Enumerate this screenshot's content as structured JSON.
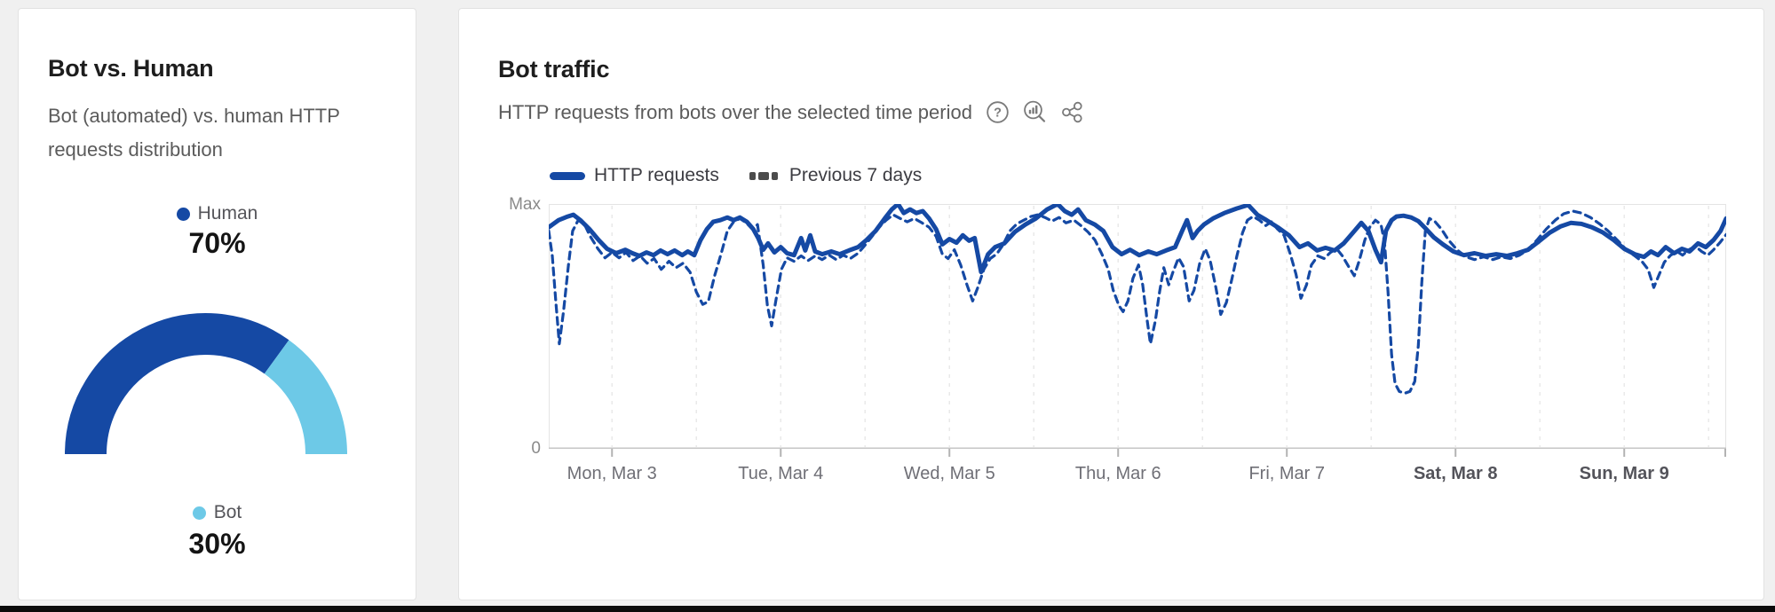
{
  "page": {
    "background": "#f0f0f0",
    "bottom_bar_color": "#0b0b0b"
  },
  "colors": {
    "accent_blue": "#1549a4",
    "light_blue": "#6dc9e7",
    "dash_marker_gray": "#4c4c4c",
    "gridline": "#e9e9e9",
    "plot_border": "#e4e4e4",
    "axis_line": "#c6c6c6",
    "tick": "#b3b3b3"
  },
  "bot_vs_human_card": {
    "title": "Bot vs. Human",
    "subtitle": "Bot (automated) vs. human HTTP requests distribution",
    "legend_human": {
      "label": "Human",
      "value": "70%",
      "color": "#1549a4"
    },
    "legend_bot": {
      "label": "Bot",
      "value": "30%",
      "color": "#6dc9e7"
    }
  },
  "bot_traffic_card": {
    "title": "Bot traffic",
    "description": "HTTP requests from bots over the selected time period",
    "icons": [
      "help-icon",
      "zoom-analytics-icon",
      "share-icon"
    ],
    "legend": [
      {
        "label": "HTTP requests",
        "style": "solid"
      },
      {
        "label": "Previous 7 days",
        "style": "dashed"
      }
    ]
  },
  "chart_data": [
    {
      "type": "pie",
      "shape": "half-donut",
      "title": "Bot vs. Human",
      "slices": [
        {
          "label": "Human",
          "value": 70,
          "color": "#1549a4"
        },
        {
          "label": "Bot",
          "value": 30,
          "color": "#6dc9e7"
        }
      ]
    },
    {
      "type": "line",
      "title": "Bot traffic",
      "x_unit": "hours",
      "x_range": [
        0,
        167.5
      ],
      "grid_start_hour": 9,
      "grid_step_hours": 12,
      "gridlines": "vertical-dashed",
      "legend_position": "top-left",
      "y_axis_labels": [
        "Max",
        "0"
      ],
      "ylim_percent_of_max": [
        0,
        100
      ],
      "x_ticks": [
        {
          "hour": 9,
          "label": "Mon, Mar 3",
          "bold": false
        },
        {
          "hour": 33,
          "label": "Tue, Mar 4",
          "bold": false
        },
        {
          "hour": 57,
          "label": "Wed, Mar 5",
          "bold": false
        },
        {
          "hour": 81,
          "label": "Thu, Mar 6",
          "bold": false
        },
        {
          "hour": 105,
          "label": "Fri, Mar 7",
          "bold": false
        },
        {
          "hour": 129,
          "label": "Sat, Mar 8",
          "bold": true
        },
        {
          "hour": 153,
          "label": "Sun, Mar 9",
          "bold": true
        }
      ],
      "series": [
        {
          "name": "HTTP requests",
          "style": "solid",
          "color": "#1549a4",
          "x": [
            0,
            1.4,
            2.7,
            3.5,
            4.5,
            5.8,
            7.1,
            8.3,
            9.6,
            10.9,
            11.9,
            12.9,
            13.9,
            14.9,
            15.9,
            16.9,
            17.9,
            19,
            19.8,
            20.7,
            21.6,
            22.5,
            23.4,
            24.4,
            25.4,
            26.3,
            27.2,
            28.2,
            29.1,
            29.8,
            30.5,
            31.2,
            32.1,
            33,
            33.9,
            34.9,
            35.9,
            36.5,
            37.2,
            37.9,
            38.9,
            40.2,
            41.4,
            42.7,
            44,
            45.2,
            46.5,
            47.8,
            48.8,
            49.7,
            50.5,
            51.4,
            52.3,
            53.2,
            54.1,
            55.1,
            56,
            57,
            58,
            58.9,
            59.8,
            60.6,
            61.5,
            62.5,
            63.5,
            64.8,
            66.3,
            67.8,
            69.3,
            70.9,
            72.4,
            73.4,
            74.4,
            75.3,
            76.4,
            77.7,
            78.9,
            80.2,
            81.5,
            82.7,
            84,
            85.3,
            86.5,
            87.8,
            89.1,
            90.1,
            90.8,
            91.6,
            92.3,
            93.2,
            94.5,
            96.1,
            97.9,
            99.5,
            100.8,
            102.1,
            103.7,
            105.3,
            106.8,
            108,
            109.3,
            110.5,
            111.8,
            113.1,
            114.3,
            115.6,
            116.6,
            117.6,
            118.4,
            119.1,
            119.9,
            120.6,
            121.6,
            122.7,
            123.7,
            124.7,
            125.9,
            127.2,
            128.7,
            130.2,
            131.7,
            133.3,
            134.8,
            136.3,
            137.8,
            139.3,
            140.8,
            142.4,
            143.9,
            145.4,
            146.9,
            148.4,
            150,
            151.5,
            153,
            154.5,
            155.8,
            156.8,
            157.8,
            158.9,
            160.1,
            161.2,
            162.3,
            163.5,
            164.6,
            165.7,
            166.7,
            167.5
          ],
          "values": [
            90.5,
            93.4,
            94.9,
            95.6,
            93.4,
            89.7,
            85.3,
            81.7,
            79.9,
            81.3,
            79.9,
            78.8,
            80.2,
            79.1,
            81,
            79.5,
            81,
            79.1,
            80.6,
            79.1,
            85.3,
            89.7,
            92.7,
            93.4,
            94.5,
            93.4,
            94.5,
            92.7,
            89.7,
            86.1,
            81.3,
            83.9,
            80.2,
            82.4,
            79.9,
            79.1,
            86.1,
            81,
            87.2,
            80.6,
            79.5,
            80.6,
            79.5,
            81,
            82.4,
            85.3,
            89,
            94.1,
            97.8,
            100,
            96.3,
            97.8,
            96.3,
            97.1,
            94.1,
            89.7,
            83.5,
            85.7,
            84.2,
            87.2,
            85,
            86.1,
            72.2,
            79.5,
            82.4,
            83.9,
            88.6,
            91.6,
            94.1,
            97.8,
            100,
            97.1,
            95.6,
            97.8,
            93.4,
            91.6,
            89,
            82.4,
            79.5,
            81.3,
            79.1,
            80.6,
            79.5,
            81,
            82.4,
            89,
            93.4,
            86.1,
            89,
            91.6,
            94.1,
            96.3,
            98.2,
            99.6,
            95.6,
            93.4,
            90.5,
            87.2,
            82.4,
            83.9,
            81,
            82.1,
            81,
            83.9,
            87.9,
            92.3,
            89,
            81.3,
            76.2,
            89,
            93.4,
            94.9,
            95.2,
            94.5,
            93,
            90.1,
            86.4,
            83.5,
            80.6,
            79.1,
            79.9,
            78.8,
            79.5,
            78.8,
            79.9,
            81.3,
            84.6,
            88.3,
            90.8,
            92.3,
            91.9,
            90.5,
            88.3,
            85.3,
            81.7,
            79.5,
            78.4,
            80.6,
            79.1,
            82.4,
            79.9,
            81.7,
            80.6,
            83.9,
            82.4,
            85.3,
            89,
            94.1
          ]
        },
        {
          "name": "Previous 7 days",
          "style": "dashed",
          "color": "#1549a4",
          "x": [
            0,
            0.5,
            1,
            1.5,
            2.1,
            2.8,
            3.4,
            4.2,
            5.1,
            5.9,
            7,
            8,
            9,
            10,
            11,
            12,
            13,
            14,
            15,
            16,
            17.1,
            18.1,
            19.1,
            20.1,
            21,
            21.9,
            22.7,
            23.6,
            24.5,
            25.4,
            26.3,
            27.2,
            28.1,
            29,
            29.7,
            30.5,
            31.1,
            31.7,
            32.3,
            33.1,
            33.9,
            34.9,
            35.9,
            36.9,
            37.9,
            38.9,
            39.9,
            40.9,
            41.9,
            42.9,
            44,
            45,
            46,
            47,
            48,
            49,
            50,
            51,
            52,
            53.1,
            54.1,
            55.1,
            56,
            56.8,
            57.7,
            58.6,
            59.5,
            60.3,
            61,
            61.9,
            62.8,
            63.7,
            64.6,
            65.6,
            66.6,
            67.6,
            68.6,
            69.6,
            70.6,
            71.6,
            72.6,
            73.6,
            74.7,
            75.7,
            76.7,
            77.7,
            78.7,
            79.6,
            80.3,
            81.1,
            81.7,
            82.4,
            83.1,
            83.9,
            84.5,
            85.1,
            85.6,
            86.3,
            86.9,
            87.5,
            88.2,
            88.8,
            89.6,
            90.3,
            91.1,
            91.8,
            92.6,
            93.4,
            94.1,
            94.9,
            95.6,
            96.4,
            97.2,
            97.9,
            98.7,
            99.4,
            100.2,
            101.1,
            102,
            102.8,
            103.7,
            104.6,
            105.5,
            106.3,
            107,
            107.8,
            108.5,
            109.4,
            110.3,
            111.2,
            112.1,
            112.9,
            113.8,
            114.6,
            115.3,
            116.1,
            116.8,
            117.6,
            118.4,
            118.9,
            119.4,
            119.9,
            120.4,
            121,
            121.8,
            122.5,
            123.2,
            123.7,
            124.2,
            124.7,
            125.3,
            126.1,
            127,
            128,
            129.2,
            130.5,
            131.7,
            133,
            134.3,
            135.5,
            136.8,
            138.1,
            139.3,
            140.6,
            141.9,
            143.2,
            144.4,
            145.7,
            146.9,
            148.2,
            149.5,
            150.7,
            152,
            153.3,
            154.5,
            155.5,
            156.4,
            157.2,
            157.9,
            158.7,
            159.6,
            160.5,
            161.3,
            162.2,
            163.1,
            164,
            164.9,
            165.7,
            166.6,
            167.5
          ],
          "values": [
            89,
            78.8,
            60.4,
            42.9,
            56,
            75.1,
            89,
            93.4,
            91.6,
            86.8,
            81.7,
            78,
            80.2,
            78,
            80.2,
            76.9,
            78.8,
            75.8,
            77.7,
            73.3,
            76.6,
            74,
            75.8,
            72.2,
            64.1,
            59,
            60.1,
            70.7,
            79.5,
            89,
            92.7,
            94.1,
            92.3,
            89.7,
            91.6,
            75.1,
            58.6,
            50.2,
            60.4,
            73.3,
            78,
            76.6,
            78.8,
            76.9,
            78.8,
            77.3,
            79.1,
            77.3,
            79.1,
            77.7,
            79.9,
            83.2,
            86.8,
            90.5,
            93.4,
            95.6,
            94.1,
            92.7,
            94.1,
            92.3,
            90.5,
            86.8,
            79.5,
            77.7,
            81.3,
            75.1,
            67,
            60.4,
            65.6,
            73.3,
            77.7,
            79.5,
            83.2,
            89,
            91.9,
            93.4,
            94.9,
            95.6,
            94.5,
            93,
            94.5,
            92.3,
            93.4,
            91.2,
            88.6,
            85.3,
            79.5,
            73.3,
            64.8,
            58.6,
            56,
            60.4,
            69.6,
            75.1,
            67,
            53.1,
            42.9,
            52.4,
            64.1,
            74,
            67,
            72.2,
            78,
            74.4,
            60.4,
            64.8,
            75.8,
            81.7,
            76.9,
            65.9,
            54.9,
            59.7,
            69.6,
            78.8,
            88.3,
            93.4,
            94.9,
            93.4,
            91.2,
            92.7,
            89.7,
            87.2,
            79.5,
            71.4,
            61.5,
            67,
            75.1,
            78.8,
            77.7,
            80.2,
            81.7,
            78.8,
            74.4,
            70.7,
            76.9,
            85.3,
            90.5,
            93.4,
            91.6,
            84.2,
            64.1,
            38.5,
            26.7,
            23.4,
            22.7,
            23.4,
            27.5,
            42.1,
            67.8,
            89,
            94.1,
            92.7,
            89.7,
            85.3,
            81.3,
            78.4,
            77.3,
            78.4,
            77.3,
            78.4,
            77.7,
            79.1,
            81.3,
            85.3,
            89.7,
            93.4,
            96,
            97.1,
            96.3,
            94.5,
            91.9,
            89,
            85.3,
            81.3,
            78.8,
            76.6,
            73.3,
            65.9,
            70.7,
            76.2,
            79.1,
            80.6,
            79.1,
            81.3,
            82.8,
            80.6,
            79.1,
            81.3,
            84.2,
            87.5
          ]
        }
      ]
    }
  ]
}
